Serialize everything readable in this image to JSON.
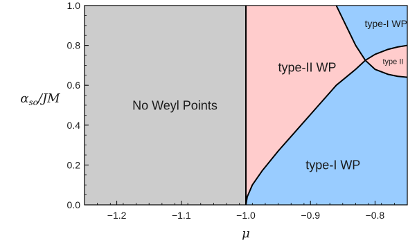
{
  "chart_data": {
    "type": "area",
    "title": "",
    "xlabel": "μ",
    "ylabel": "αso/JM",
    "xlim": [
      -1.25,
      -0.75
    ],
    "ylim": [
      0.0,
      1.0
    ],
    "x_ticks": [
      {
        "value": -1.2,
        "label": "−1.2"
      },
      {
        "value": -1.1,
        "label": "−1.1"
      },
      {
        "value": -1.0,
        "label": "−1.0"
      },
      {
        "value": -0.9,
        "label": "−0.9"
      },
      {
        "value": -0.8,
        "label": "−0.8"
      }
    ],
    "y_ticks": [
      {
        "value": 0.0,
        "label": "0.0"
      },
      {
        "value": 0.2,
        "label": "0.2"
      },
      {
        "value": 0.4,
        "label": "0.4"
      },
      {
        "value": 0.6,
        "label": "0.6"
      },
      {
        "value": 0.8,
        "label": "0.8"
      },
      {
        "value": 1.0,
        "label": "1.0"
      }
    ],
    "grid": false,
    "colors": {
      "no_weyl": "#cccccc",
      "type_ii": "#ffcccc",
      "type_i": "#99ccff",
      "boundary": "#000000"
    },
    "regions": [
      {
        "label": "No Weyl Points",
        "fill": "no_weyl",
        "label_x": -1.11,
        "label_y": 0.5,
        "size": "large"
      },
      {
        "label": "type-II WP",
        "fill": "type_ii",
        "label_x": -0.905,
        "label_y": 0.69,
        "size": "large"
      },
      {
        "label": "type-I  WP",
        "fill": "type_i",
        "label_x": -0.865,
        "label_y": 0.2,
        "size": "large"
      },
      {
        "label": "type-I WP",
        "fill": "type_i",
        "label_x": -0.783,
        "label_y": 0.91,
        "size": "medium"
      },
      {
        "label": "type II",
        "fill": "type_ii",
        "label_x": -0.772,
        "label_y": 0.72,
        "size": "small"
      }
    ],
    "boundaries": {
      "vertical_line_mu": -1.0,
      "lower_curve": [
        [
          -1.0,
          0.0
        ],
        [
          -0.998,
          0.04
        ],
        [
          -0.99,
          0.1
        ],
        [
          -0.975,
          0.17
        ],
        [
          -0.95,
          0.27
        ],
        [
          -0.92,
          0.38
        ],
        [
          -0.89,
          0.49
        ],
        [
          -0.86,
          0.6
        ],
        [
          -0.83,
          0.68
        ],
        [
          -0.815,
          0.725
        ]
      ],
      "upper_curve": [
        [
          -0.86,
          1.0
        ],
        [
          -0.845,
          0.9
        ],
        [
          -0.83,
          0.8
        ],
        [
          -0.815,
          0.725
        ],
        [
          -0.8,
          0.68
        ],
        [
          -0.78,
          0.655
        ],
        [
          -0.765,
          0.645
        ],
        [
          -0.75,
          0.64
        ]
      ],
      "crossing_curve": [
        [
          -0.815,
          0.725
        ],
        [
          -0.8,
          0.755
        ],
        [
          -0.78,
          0.78
        ],
        [
          -0.765,
          0.792
        ],
        [
          -0.75,
          0.8
        ]
      ]
    }
  }
}
